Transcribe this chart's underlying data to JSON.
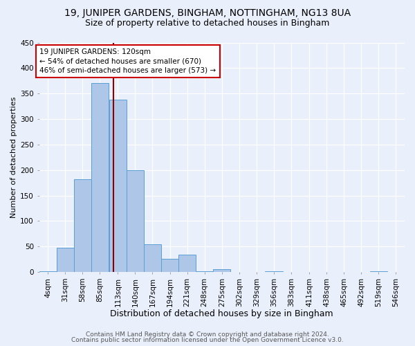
{
  "title1": "19, JUNIPER GARDENS, BINGHAM, NOTTINGHAM, NG13 8UA",
  "title2": "Size of property relative to detached houses in Bingham",
  "xlabel": "Distribution of detached houses by size in Bingham",
  "ylabel": "Number of detached properties",
  "bin_labels": [
    "4sqm",
    "31sqm",
    "58sqm",
    "85sqm",
    "113sqm",
    "140sqm",
    "167sqm",
    "194sqm",
    "221sqm",
    "248sqm",
    "275sqm",
    "302sqm",
    "329sqm",
    "356sqm",
    "383sqm",
    "411sqm",
    "438sqm",
    "465sqm",
    "492sqm",
    "519sqm",
    "546sqm"
  ],
  "bin_edges": [
    4,
    31,
    58,
    85,
    113,
    140,
    167,
    194,
    221,
    248,
    275,
    302,
    329,
    356,
    383,
    411,
    438,
    465,
    492,
    519,
    546
  ],
  "bar_heights": [
    2,
    48,
    182,
    370,
    338,
    200,
    54,
    26,
    34,
    2,
    6,
    0,
    0,
    2,
    0,
    0,
    0,
    0,
    0,
    2,
    0
  ],
  "bar_color": "#aec6e8",
  "bar_edge_color": "#5a9fd4",
  "property_value": 120,
  "vline_color": "#8b0000",
  "annotation_line1": "19 JUNIPER GARDENS: 120sqm",
  "annotation_line2": "← 54% of detached houses are smaller (670)",
  "annotation_line3": "46% of semi-detached houses are larger (573) →",
  "annotation_box_color": "white",
  "annotation_box_edge": "#cc0000",
  "bg_color": "#eaf0fb",
  "grid_color": "#ffffff",
  "footer1": "Contains HM Land Registry data © Crown copyright and database right 2024.",
  "footer2": "Contains public sector information licensed under the Open Government Licence v3.0.",
  "ylim": [
    0,
    450
  ],
  "yticks": [
    0,
    50,
    100,
    150,
    200,
    250,
    300,
    350,
    400,
    450
  ],
  "title1_fontsize": 10,
  "title2_fontsize": 9,
  "xlabel_fontsize": 9,
  "ylabel_fontsize": 8,
  "tick_fontsize": 7.5,
  "annotation_fontsize": 7.5,
  "footer_fontsize": 6.5
}
